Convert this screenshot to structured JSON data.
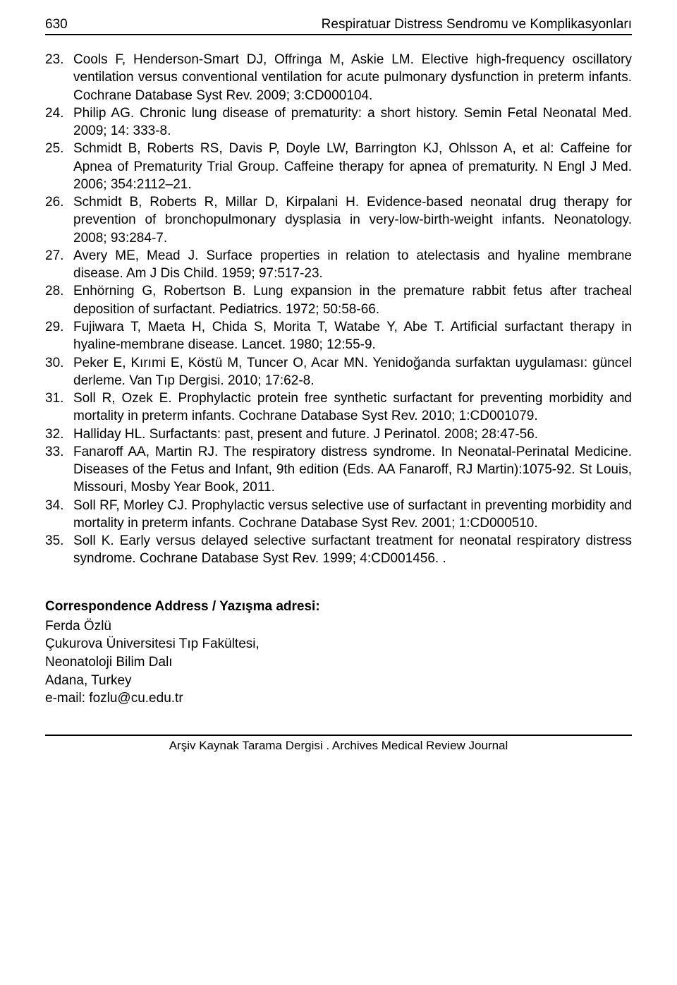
{
  "header": {
    "page_number": "630",
    "running_title": "Respiratuar Distress Sendromu ve Komplikasyonları"
  },
  "references": [
    {
      "n": "23.",
      "text": "Cools F, Henderson-Smart DJ, Offringa M, Askie LM. Elective high-frequency oscillatory ventilation versus conventional ventilation for acute pulmonary dysfunction in preterm infants. Cochrane Database Syst Rev. 2009; 3:CD000104."
    },
    {
      "n": "24.",
      "text": "Philip AG. Chronic lung disease of prematurity: a short history. Semin Fetal Neonatal Med. 2009; 14: 333-8."
    },
    {
      "n": "25.",
      "text": "Schmidt B, Roberts RS, Davis P, Doyle LW, Barrington KJ, Ohlsson A, et al: Caffeine for Apnea of Prematurity Trial Group. Caffeine therapy for apnea of prematurity. N Engl J Med. 2006; 354:2112–21."
    },
    {
      "n": "26.",
      "text": "Schmidt B, Roberts R, Millar D, Kirpalani H. Evidence-based neonatal drug therapy for prevention of bronchopulmonary dysplasia in very-low-birth-weight infants. Neonatology. 2008; 93:284-7."
    },
    {
      "n": "27.",
      "text": "Avery ME, Mead J. Surface properties in relation to atelectasis and hyaline membrane disease. Am J Dis Child. 1959; 97:517-23."
    },
    {
      "n": "28.",
      "text": "Enhörning G, Robertson B. Lung expansion in the premature rabbit fetus after tracheal deposition of surfactant. Pediatrics. 1972; 50:58-66."
    },
    {
      "n": "29.",
      "text": "Fujiwara T, Maeta H, Chida S, Morita T, Watabe Y, Abe T. Artificial surfactant therapy in hyaline-membrane disease. Lancet. 1980; 12:55-9."
    },
    {
      "n": "30.",
      "text": "Peker E, Kırımi E, Köstü M, Tuncer O, Acar MN. Yenidoğanda surfaktan uygulaması: güncel derleme. Van Tıp Dergisi. 2010; 17:62-8."
    },
    {
      "n": "31.",
      "text": "Soll R, Ozek E. Prophylactic protein free synthetic surfactant for preventing morbidity and mortality in preterm infants. Cochrane Database Syst Rev. 2010; 1:CD001079."
    },
    {
      "n": "32.",
      "text": "Halliday HL. Surfactants: past, present and future. J Perinatol. 2008; 28:47-56."
    },
    {
      "n": "33.",
      "text": "Fanaroff AA, Martin RJ. The respiratory distress syndrome. In Neonatal-Perinatal Medicine. Diseases of the Fetus and Infant, 9th edition (Eds. AA Fanaroff, RJ Martin):1075-92. St Louis, Missouri, Mosby Year Book, 2011."
    },
    {
      "n": "34.",
      "text": "Soll RF, Morley CJ. Prophylactic versus selective use of surfactant in preventing morbidity and mortality in preterm infants. Cochrane Database Syst Rev. 2001; 1:CD000510."
    },
    {
      "n": "35.",
      "text": "Soll K. Early versus delayed selective surfactant treatment for neonatal respiratory distress syndrome. Cochrane Database Syst Rev. 1999; 4:CD001456. ."
    }
  ],
  "correspondence": {
    "heading": "Correspondence Address / Yazışma adresi:",
    "lines": [
      "Ferda Özlü",
      "Çukurova Üniversitesi Tıp Fakültesi,",
      "Neonatoloji Bilim Dalı",
      "Adana, Turkey",
      "e-mail: fozlu@cu.edu.tr"
    ]
  },
  "footer": {
    "text": "Arşiv Kaynak Tarama Dergisi . Archives Medical Review Journal"
  }
}
